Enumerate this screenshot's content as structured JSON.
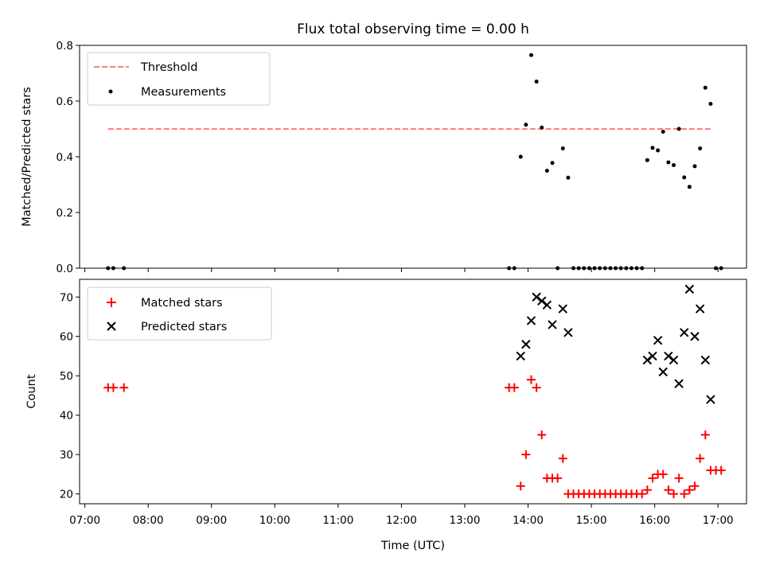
{
  "chart_data": [
    {
      "type": "scatter",
      "title": "Flux total observing time = 0.00 h",
      "xlabel": "",
      "ylabel": "Matched/Predicted stars",
      "xlim": [
        "06:55",
        "17:27"
      ],
      "ylim": [
        0,
        0.8
      ],
      "yticks": [
        "0.0",
        "0.2",
        "0.4",
        "0.6",
        "0.8"
      ],
      "grid": false,
      "legend_position": "top-left",
      "threshold": {
        "name": "Threshold",
        "value": 0.5,
        "x_start": "07:22",
        "x_end": "16:55",
        "color": "#ff7f7f"
      },
      "series": [
        {
          "name": "Measurements",
          "color": "#000000",
          "marker": "dot",
          "points": [
            [
              "07:22",
              0.0
            ],
            [
              "07:27",
              0.0
            ],
            [
              "07:37",
              0.0
            ],
            [
              "13:42",
              0.0
            ],
            [
              "13:47",
              0.0
            ],
            [
              "13:53",
              0.4
            ],
            [
              "13:58",
              0.515
            ],
            [
              "14:03",
              0.765
            ],
            [
              "14:08",
              0.67
            ],
            [
              "14:13",
              0.505
            ],
            [
              "14:18",
              0.35
            ],
            [
              "14:23",
              0.378
            ],
            [
              "14:28",
              0.0
            ],
            [
              "14:33",
              0.43
            ],
            [
              "14:38",
              0.325
            ],
            [
              "14:43",
              0.0
            ],
            [
              "14:48",
              0.0
            ],
            [
              "14:53",
              0.0
            ],
            [
              "14:58",
              0.0
            ],
            [
              "15:03",
              0.0
            ],
            [
              "15:08",
              0.0
            ],
            [
              "15:13",
              0.0
            ],
            [
              "15:18",
              0.0
            ],
            [
              "15:23",
              0.0
            ],
            [
              "15:28",
              0.0
            ],
            [
              "15:33",
              0.0
            ],
            [
              "15:38",
              0.0
            ],
            [
              "15:43",
              0.0
            ],
            [
              "15:48",
              0.0
            ],
            [
              "15:53",
              0.388
            ],
            [
              "15:58",
              0.432
            ],
            [
              "16:03",
              0.423
            ],
            [
              "16:08",
              0.49
            ],
            [
              "16:13",
              0.38
            ],
            [
              "16:18",
              0.37
            ],
            [
              "16:23",
              0.5
            ],
            [
              "16:28",
              0.326
            ],
            [
              "16:33",
              0.292
            ],
            [
              "16:38",
              0.366
            ],
            [
              "16:43",
              0.43
            ],
            [
              "16:48",
              0.648
            ],
            [
              "16:53",
              0.59
            ],
            [
              "16:58",
              0.0
            ],
            [
              "17:03",
              0.0
            ]
          ]
        }
      ]
    },
    {
      "type": "scatter",
      "title": "",
      "xlabel": "Time (UTC)",
      "ylabel": "Count",
      "xlim": [
        "06:55",
        "17:27"
      ],
      "ylim": [
        17.5,
        74.5
      ],
      "yticks": [
        "20",
        "30",
        "40",
        "50",
        "60",
        "70"
      ],
      "xticks": [
        "07:00",
        "08:00",
        "09:00",
        "10:00",
        "11:00",
        "12:00",
        "13:00",
        "14:00",
        "15:00",
        "16:00",
        "17:00"
      ],
      "grid": false,
      "legend_position": "top-left",
      "series": [
        {
          "name": "Matched stars",
          "color": "#ff0000",
          "marker": "plus",
          "points": [
            [
              "07:22",
              47
            ],
            [
              "07:27",
              47
            ],
            [
              "07:37",
              47
            ],
            [
              "13:42",
              47
            ],
            [
              "13:47",
              47
            ],
            [
              "13:53",
              22
            ],
            [
              "13:58",
              30
            ],
            [
              "14:03",
              49
            ],
            [
              "14:08",
              47
            ],
            [
              "14:13",
              35
            ],
            [
              "14:18",
              24
            ],
            [
              "14:23",
              24
            ],
            [
              "14:28",
              24
            ],
            [
              "14:33",
              29
            ],
            [
              "14:38",
              20
            ],
            [
              "14:43",
              20
            ],
            [
              "14:48",
              20
            ],
            [
              "14:53",
              20
            ],
            [
              "14:58",
              20
            ],
            [
              "15:03",
              20
            ],
            [
              "15:08",
              20
            ],
            [
              "15:13",
              20
            ],
            [
              "15:18",
              20
            ],
            [
              "15:23",
              20
            ],
            [
              "15:28",
              20
            ],
            [
              "15:33",
              20
            ],
            [
              "15:38",
              20
            ],
            [
              "15:43",
              20
            ],
            [
              "15:48",
              20
            ],
            [
              "15:53",
              21
            ],
            [
              "15:58",
              24
            ],
            [
              "16:03",
              25
            ],
            [
              "16:08",
              25
            ],
            [
              "16:13",
              21
            ],
            [
              "16:18",
              20
            ],
            [
              "16:23",
              24
            ],
            [
              "16:28",
              20
            ],
            [
              "16:33",
              21
            ],
            [
              "16:38",
              22
            ],
            [
              "16:43",
              29
            ],
            [
              "16:48",
              35
            ],
            [
              "16:53",
              26
            ],
            [
              "16:58",
              26
            ],
            [
              "17:03",
              26
            ]
          ]
        },
        {
          "name": "Predicted stars",
          "color": "#000000",
          "marker": "x",
          "points": [
            [
              "13:53",
              55
            ],
            [
              "13:58",
              58
            ],
            [
              "14:03",
              64
            ],
            [
              "14:08",
              70
            ],
            [
              "14:13",
              69
            ],
            [
              "14:18",
              68
            ],
            [
              "14:23",
              63
            ],
            [
              "14:33",
              67
            ],
            [
              "14:38",
              61
            ],
            [
              "15:53",
              54
            ],
            [
              "15:58",
              55
            ],
            [
              "16:03",
              59
            ],
            [
              "16:08",
              51
            ],
            [
              "16:13",
              55
            ],
            [
              "16:18",
              54
            ],
            [
              "16:23",
              48
            ],
            [
              "16:28",
              61
            ],
            [
              "16:33",
              72
            ],
            [
              "16:38",
              60
            ],
            [
              "16:43",
              67
            ],
            [
              "16:48",
              54
            ],
            [
              "16:53",
              44
            ]
          ]
        }
      ]
    }
  ]
}
